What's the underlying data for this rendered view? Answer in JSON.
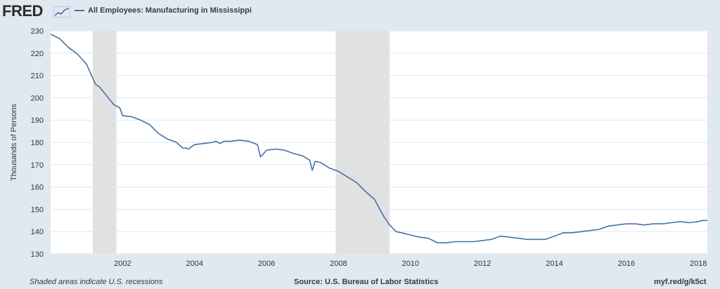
{
  "header": {
    "logo": "FRED",
    "logo_icon": "fred-chart-icon",
    "series_title": "All Employees: Manufacturing in Mississippi"
  },
  "footer": {
    "note": "Shaded areas indicate U.S. recessions",
    "source": "Source: U.S. Bureau of Labor Statistics",
    "link": "myf.red/g/k5ct"
  },
  "colors": {
    "line": "#4572a7",
    "recession": "#e1e1e1",
    "background": "#e1e9f0",
    "plot_background": "#ffffff",
    "grid": "#dfe6ee"
  },
  "chart_data": {
    "type": "line",
    "title": "All Employees: Manufacturing in Mississippi",
    "xlabel": "",
    "ylabel": "Thousands of Persons",
    "xlim": [
      2000.0,
      2018.25
    ],
    "ylim": [
      130,
      230
    ],
    "y_ticks": [
      130,
      140,
      150,
      160,
      170,
      180,
      190,
      200,
      210,
      220,
      230
    ],
    "x_ticks": [
      2002,
      2004,
      2006,
      2008,
      2010,
      2012,
      2014,
      2016,
      2018
    ],
    "grid": "horizontal",
    "recessions": [
      [
        2001.17,
        2001.83
      ],
      [
        2007.92,
        2009.42
      ]
    ],
    "series": [
      {
        "name": "All Employees: Manufacturing in Mississippi",
        "x": [
          2000.0,
          2000.25,
          2000.5,
          2000.75,
          2001.0,
          2001.08,
          2001.25,
          2001.35,
          2001.5,
          2001.75,
          2001.92,
          2002.0,
          2002.25,
          2002.5,
          2002.75,
          2003.0,
          2003.25,
          2003.5,
          2003.67,
          2003.75,
          2003.83,
          2004.0,
          2004.25,
          2004.5,
          2004.6,
          2004.7,
          2004.83,
          2005.0,
          2005.25,
          2005.5,
          2005.67,
          2005.75,
          2005.83,
          2006.0,
          2006.25,
          2006.5,
          2006.75,
          2007.0,
          2007.2,
          2007.27,
          2007.35,
          2007.5,
          2007.75,
          2008.0,
          2008.25,
          2008.5,
          2008.75,
          2009.0,
          2009.25,
          2009.42,
          2009.6,
          2009.75,
          2010.0,
          2010.25,
          2010.5,
          2010.75,
          2011.0,
          2011.25,
          2011.5,
          2011.75,
          2012.0,
          2012.25,
          2012.5,
          2012.75,
          2013.0,
          2013.25,
          2013.5,
          2013.75,
          2014.0,
          2014.25,
          2014.5,
          2014.75,
          2015.0,
          2015.25,
          2015.5,
          2015.75,
          2016.0,
          2016.25,
          2016.5,
          2016.75,
          2017.0,
          2017.25,
          2017.5,
          2017.75,
          2018.0,
          2018.1,
          2018.25
        ],
        "values": [
          228.5,
          226.5,
          222.5,
          219.5,
          215.0,
          212.0,
          206.0,
          205.0,
          202.0,
          197.0,
          195.5,
          192.0,
          191.5,
          190.0,
          188.0,
          184.0,
          181.5,
          180.0,
          177.5,
          177.5,
          177.0,
          179.0,
          179.5,
          180.0,
          180.5,
          179.5,
          180.5,
          180.5,
          181.0,
          180.5,
          179.5,
          179.0,
          173.5,
          176.5,
          177.0,
          176.5,
          175.0,
          174.0,
          172.0,
          167.5,
          171.5,
          171.0,
          168.5,
          167.0,
          164.5,
          162.0,
          158.0,
          154.5,
          147.0,
          143.0,
          140.0,
          139.5,
          138.5,
          137.5,
          137.0,
          135.0,
          135.0,
          135.5,
          135.5,
          135.5,
          136.0,
          136.5,
          138.0,
          137.5,
          137.0,
          136.5,
          136.5,
          136.5,
          138.0,
          139.5,
          139.5,
          140.0,
          140.5,
          141.0,
          142.5,
          143.0,
          143.5,
          143.5,
          143.0,
          143.5,
          143.5,
          144.0,
          144.5,
          144.0,
          144.5,
          145.0,
          145.0
        ]
      }
    ]
  }
}
